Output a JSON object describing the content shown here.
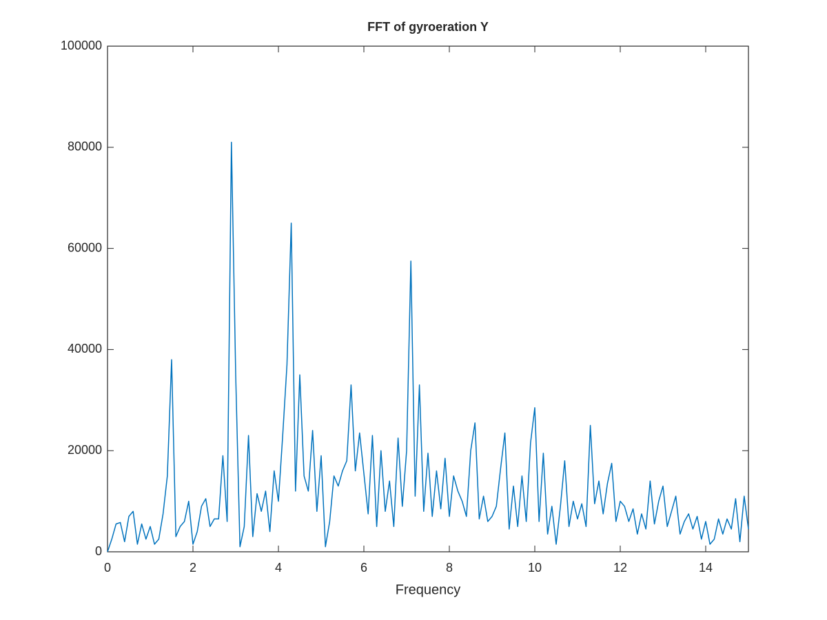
{
  "chart_data": {
    "type": "line",
    "title": "FFT of gyroeration Y",
    "xlabel": "Frequency",
    "xlim": [
      0,
      15
    ],
    "ylim": [
      0,
      100000
    ],
    "xticks": [
      0,
      2,
      4,
      6,
      8,
      10,
      12,
      14
    ],
    "yticks": [
      0,
      20000,
      40000,
      60000,
      80000,
      100000
    ],
    "grid": false,
    "x": [
      0.0,
      0.1,
      0.2,
      0.3,
      0.4,
      0.5,
      0.6,
      0.7,
      0.8,
      0.9,
      1.0,
      1.1,
      1.2,
      1.3,
      1.4,
      1.5,
      1.6,
      1.7,
      1.8,
      1.9,
      2.0,
      2.1,
      2.2,
      2.3,
      2.4,
      2.5,
      2.6,
      2.7,
      2.8,
      2.9,
      3.0,
      3.1,
      3.2,
      3.3,
      3.4,
      3.5,
      3.6,
      3.7,
      3.8,
      3.9,
      4.0,
      4.1,
      4.2,
      4.3,
      4.4,
      4.5,
      4.6,
      4.7,
      4.8,
      4.9,
      5.0,
      5.1,
      5.2,
      5.3,
      5.4,
      5.5,
      5.6,
      5.7,
      5.8,
      5.9,
      6.0,
      6.1,
      6.2,
      6.3,
      6.4,
      6.5,
      6.6,
      6.7,
      6.8,
      6.9,
      7.0,
      7.1,
      7.2,
      7.3,
      7.4,
      7.5,
      7.6,
      7.7,
      7.8,
      7.9,
      8.0,
      8.1,
      8.2,
      8.3,
      8.4,
      8.5,
      8.6,
      8.7,
      8.8,
      8.9,
      9.0,
      9.1,
      9.2,
      9.3,
      9.4,
      9.5,
      9.6,
      9.7,
      9.8,
      9.9,
      10.0,
      10.1,
      10.2,
      10.3,
      10.4,
      10.5,
      10.6,
      10.7,
      10.8,
      10.9,
      11.0,
      11.1,
      11.2,
      11.3,
      11.4,
      11.5,
      11.6,
      11.7,
      11.8,
      11.9,
      12.0,
      12.1,
      12.2,
      12.3,
      12.4,
      12.5,
      12.6,
      12.7,
      12.8,
      12.9,
      13.0,
      13.1,
      13.2,
      13.3,
      13.4,
      13.5,
      13.6,
      13.7,
      13.8,
      13.9,
      14.0,
      14.1,
      14.2,
      14.3,
      14.4,
      14.5,
      14.6,
      14.7,
      14.8,
      14.9,
      15.0
    ],
    "series": [
      {
        "color": "#0072bd",
        "values": [
          0,
          2500,
          5500,
          5800,
          2000,
          7000,
          8000,
          1500,
          5500,
          2500,
          5000,
          1500,
          2500,
          7500,
          15000,
          38000,
          3000,
          5000,
          6000,
          10000,
          1500,
          4000,
          9000,
          10500,
          5000,
          6500,
          6500,
          19000,
          6000,
          81000,
          35000,
          1000,
          5000,
          23000,
          3000,
          11500,
          8000,
          12000,
          4000,
          16000,
          10000,
          23000,
          37000,
          65000,
          12000,
          35000,
          15000,
          12000,
          24000,
          8000,
          19000,
          1000,
          6000,
          15000,
          13000,
          16000,
          18000,
          33000,
          16000,
          23500,
          15500,
          7500,
          23000,
          5000,
          20000,
          8000,
          14000,
          5000,
          22500,
          9000,
          20000,
          57500,
          11000,
          33000,
          8000,
          19500,
          7000,
          16000,
          8500,
          18500,
          7000,
          15000,
          12000,
          10000,
          7000,
          20000,
          25500,
          6500,
          11000,
          6000,
          7000,
          9000,
          16500,
          23500,
          4500,
          13000,
          5000,
          15000,
          6000,
          21500,
          28500,
          6000,
          19500,
          3500,
          9000,
          1500,
          9000,
          18000,
          5000,
          10000,
          6500,
          9500,
          5000,
          25000,
          9500,
          14000,
          7500,
          13500,
          17500,
          6000,
          10000,
          9000,
          6000,
          8500,
          3500,
          7500,
          4500,
          14000,
          5500,
          10000,
          13000,
          5000,
          8000,
          11000,
          3500,
          6000,
          7500,
          4500,
          7000,
          2500,
          6000,
          1500,
          2500,
          6500,
          3500,
          6500,
          4500,
          10500,
          2000,
          11000,
          4500
        ]
      }
    ]
  }
}
